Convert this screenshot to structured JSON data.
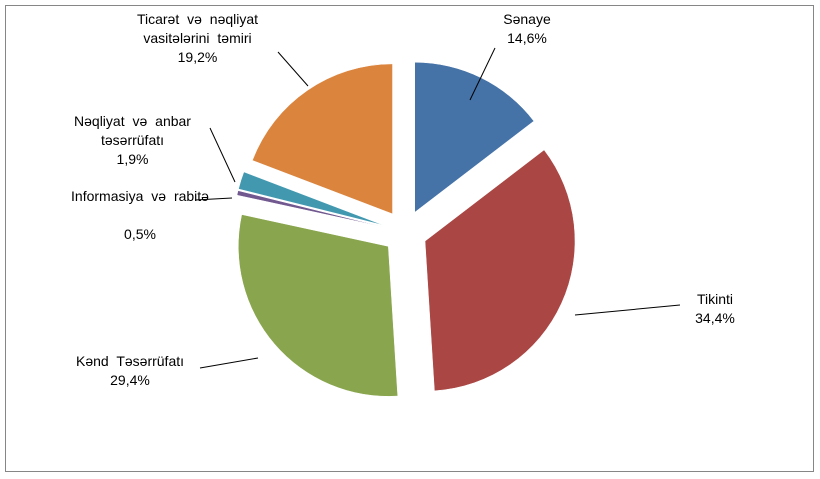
{
  "chart_data": {
    "type": "pie",
    "categories": [
      "Sənaye",
      "Tikinti",
      "Kənd Təsərrüfatı",
      "Informasiya və rabitə",
      "Nəqliyat və anbar təsərrüfatı",
      "Ticarət və nəqliyat vasitələrini təmiri"
    ],
    "values": [
      14.6,
      34.4,
      29.4,
      0.5,
      1.9,
      19.2
    ],
    "value_labels": [
      "14,6%",
      "34,4%",
      "29,4%",
      "0,5%",
      "1,9%",
      "19,2%"
    ],
    "colors": [
      "#4572a7",
      "#aa4643",
      "#89a54e",
      "#71588f",
      "#4198af",
      "#db843d"
    ]
  }
}
